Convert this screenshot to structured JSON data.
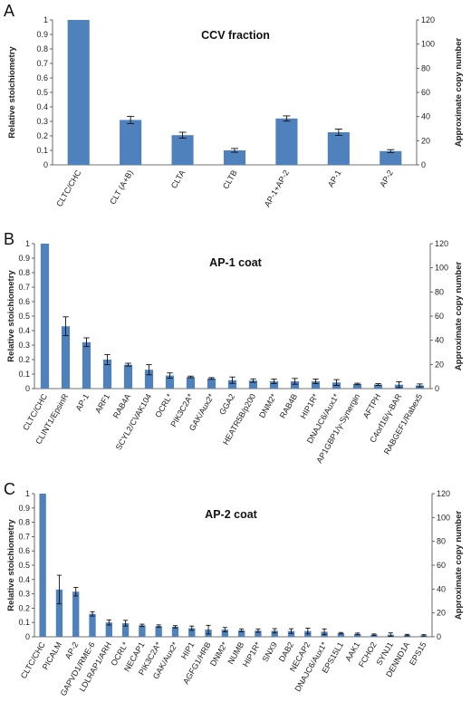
{
  "chart_data": [
    {
      "type": "bar",
      "panel_label": "A",
      "title": "CCV fraction",
      "ylabel": "Relative stoichiometry",
      "y2label": "Approximate copy number",
      "ylim": [
        0,
        1
      ],
      "y2lim": [
        0,
        120
      ],
      "yticks": [
        "0",
        "0.1",
        "0.2",
        "0.3",
        "0.4",
        "0.5",
        "0.6",
        "0.7",
        "0.8",
        "0.9",
        "1"
      ],
      "y2ticks": [
        "0",
        "20",
        "40",
        "60",
        "80",
        "100",
        "120"
      ],
      "categories": [
        "CLTC/CHC",
        "CLT (A+B)",
        "CLTA",
        "CLTB",
        "AP-1+AP-2",
        "AP-1",
        "AP-2"
      ],
      "values": [
        1.0,
        0.31,
        0.205,
        0.1,
        0.32,
        0.225,
        0.095
      ],
      "errors": [
        0,
        0.025,
        0.02,
        0.013,
        0.018,
        0.022,
        0.01
      ],
      "bar_color": "#4f81bd",
      "grid": false
    },
    {
      "type": "bar",
      "panel_label": "B",
      "title": "AP-1 coat",
      "ylabel": "Relative stoichiometry",
      "y2label": "Approximate copy number",
      "ylim": [
        0,
        1
      ],
      "y2lim": [
        0,
        120
      ],
      "yticks": [
        "0",
        "0.1",
        "0.2",
        "0.3",
        "0.4",
        "0.5",
        "0.6",
        "0.7",
        "0.8",
        "0.9",
        "1"
      ],
      "y2ticks": [
        "0",
        "20",
        "40",
        "60",
        "80",
        "100",
        "120"
      ],
      "categories": [
        "CLTC/CHC",
        "CLINT1/EpsinR",
        "AP-1",
        "ARF1",
        "RAB4A",
        "SCYL2/CVAK104",
        "OCRL*",
        "PIK3C2A*",
        "GAK/Aux2*",
        "GGA2",
        "HEATR5B/p200",
        "DNM2*",
        "RAB4B",
        "HIP1R*",
        "DNAJC6/Aux1*",
        "AP1GBP1/γ-Synergin",
        "AFTPH",
        "C4orf16/γ-BAR",
        "RABGEF1/Rabex5"
      ],
      "values": [
        1.0,
        0.43,
        0.32,
        0.2,
        0.165,
        0.13,
        0.09,
        0.08,
        0.07,
        0.058,
        0.055,
        0.05,
        0.05,
        0.05,
        0.042,
        0.032,
        0.028,
        0.027,
        0.022
      ],
      "errors": [
        0,
        0.065,
        0.03,
        0.035,
        0.01,
        0.035,
        0.018,
        0.006,
        0.006,
        0.022,
        0.012,
        0.016,
        0.02,
        0.016,
        0.02,
        0.005,
        0.006,
        0.02,
        0.01
      ],
      "bar_color": "#4f81bd",
      "grid": false
    },
    {
      "type": "bar",
      "panel_label": "C",
      "title": "AP-2 coat",
      "ylabel": "Relative stoichiometry",
      "y2label": "Approximate copy number",
      "ylim": [
        0,
        1
      ],
      "y2lim": [
        0,
        120
      ],
      "yticks": [
        "0",
        "0.1",
        "0.2",
        "0.3",
        "0.4",
        "0.5",
        "0.6",
        "0.7",
        "0.8",
        "0.9",
        "1"
      ],
      "y2ticks": [
        "0",
        "20",
        "40",
        "60",
        "80",
        "100",
        "120"
      ],
      "categories": [
        "CLTC/CHC",
        "PICALM",
        "AP-2",
        "GAPVD1/RME-6",
        "LDLRAP1/ARH",
        "OCRL*",
        "NECAP1",
        "PIK3C2A*",
        "GAK/Aux2*",
        "HIP1",
        "AGFG1/HRB",
        "DNM2*",
        "NUMB",
        "HIP1R*",
        "SNX9",
        "DAB2",
        "NECAP2",
        "DNAJC6/Aux1*",
        "EPS15L1",
        "AAK1",
        "FCHO2",
        "SYNJ1",
        "DENND1A",
        "EPS15"
      ],
      "values": [
        1.0,
        0.33,
        0.315,
        0.16,
        0.1,
        0.095,
        0.08,
        0.075,
        0.07,
        0.06,
        0.05,
        0.05,
        0.045,
        0.043,
        0.042,
        0.04,
        0.04,
        0.035,
        0.025,
        0.02,
        0.015,
        0.015,
        0.012,
        0.01
      ],
      "errors": [
        0,
        0.1,
        0.03,
        0.015,
        0.018,
        0.02,
        0.008,
        0.008,
        0.008,
        0.015,
        0.03,
        0.015,
        0.01,
        0.012,
        0.015,
        0.016,
        0.02,
        0.02,
        0.005,
        0.006,
        0.005,
        0.012,
        0.005,
        0.005
      ],
      "bar_color": "#4f81bd",
      "grid": false
    }
  ]
}
